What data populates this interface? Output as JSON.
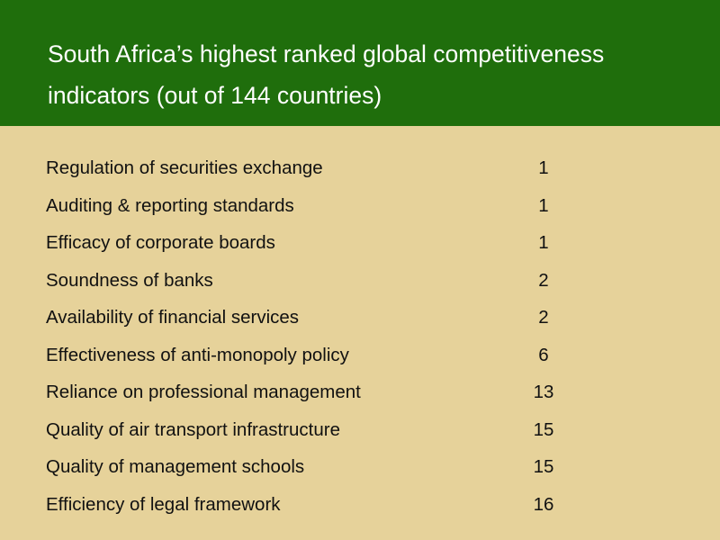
{
  "slide": {
    "title": "South Africa’s highest ranked global competitiveness indicators (out of 144 countries)",
    "colors": {
      "header_background": "#1f6e0c",
      "body_background": "#e6d29a",
      "title_text": "#ffffff",
      "body_text": "#111111"
    }
  },
  "indicators": [
    {
      "label": "Regulation of securities exchange",
      "rank": "1"
    },
    {
      "label": "Auditing & reporting standards",
      "rank": "1"
    },
    {
      "label": "Efficacy of corporate boards",
      "rank": "1"
    },
    {
      "label": "Soundness of banks",
      "rank": "2"
    },
    {
      "label": "Availability of financial services",
      "rank": "2"
    },
    {
      "label": "Effectiveness of anti-monopoly policy",
      "rank": "6"
    },
    {
      "label": "Reliance on professional management",
      "rank": "13"
    },
    {
      "label": "Quality of air transport infrastructure",
      "rank": "15"
    },
    {
      "label": "Quality of management schools",
      "rank": "15"
    },
    {
      "label": "Efficiency of legal framework",
      "rank": "16"
    }
  ]
}
